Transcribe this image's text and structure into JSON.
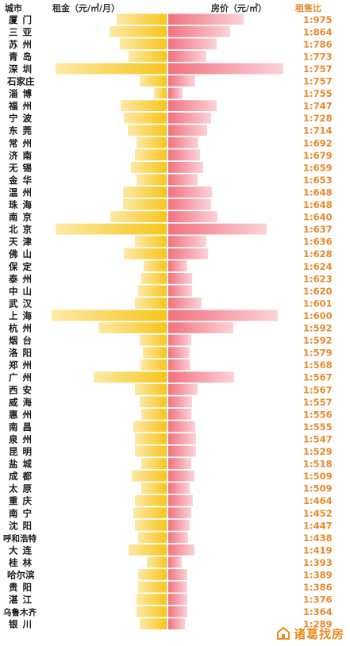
{
  "headers": {
    "city": "城市",
    "rent": "租金（元/㎡/月）",
    "price": "房价（元/㎡）",
    "ratio": "租售比"
  },
  "watermark": "诸葛找房",
  "colors": {
    "rent_dark": "#f7c51a",
    "rent_light": "#fde9a6",
    "price_dark": "#f2707e",
    "price_light": "#fbd3d8",
    "ratio_text": "#e8892b",
    "city_text": "#1a1a1a"
  },
  "chart_data": {
    "type": "bar",
    "categories": [
      "厦门",
      "三亚",
      "苏州",
      "青岛",
      "深圳",
      "石家庄",
      "淄博",
      "福州",
      "宁波",
      "东莞",
      "常州",
      "济南",
      "无锡",
      "金华",
      "温州",
      "珠海",
      "南京",
      "北京",
      "天津",
      "佛山",
      "保定",
      "泰州",
      "中山",
      "武汉",
      "上海",
      "杭州",
      "烟台",
      "洛阳",
      "郑州",
      "广州",
      "西安",
      "威海",
      "惠州",
      "南昌",
      "泉州",
      "昆明",
      "盐城",
      "成都",
      "太原",
      "重庆",
      "南宁",
      "沈阳",
      "呼和浩特",
      "大连",
      "桂林",
      "哈尔滨",
      "贵阳",
      "湛江",
      "乌鲁木齐",
      "银川"
    ],
    "series": [
      {
        "name": "租金（元/㎡/月）",
        "values": [
          63,
          72,
          59,
          48,
          140,
          34,
          16,
          58,
          54,
          49,
          38,
          40,
          45,
          38,
          55,
          55,
          71,
          140,
          40,
          54,
          29,
          32,
          36,
          40,
          145,
          86,
          34,
          30,
          33,
          92,
          40,
          34,
          32,
          42,
          40,
          40,
          32,
          44,
          32,
          40,
          42,
          40,
          36,
          48,
          25,
          36,
          36,
          38,
          38,
          34
        ]
      },
      {
        "name": "房价（元/㎡）",
        "values": [
          95,
          78,
          61,
          48,
          145,
          34,
          18,
          61,
          54,
          49,
          38,
          40,
          44,
          37,
          55,
          54,
          62,
          124,
          48,
          50,
          24,
          30,
          30,
          42,
          138,
          82,
          29,
          27,
          28,
          83,
          37,
          30,
          29,
          34,
          35,
          35,
          29,
          33,
          27,
          31,
          29,
          27,
          25,
          33,
          17,
          24,
          24,
          24,
          24,
          21
        ]
      },
      {
        "name": "租售比",
        "values": [
          "1:975",
          "1:864",
          "1:786",
          "1:773",
          "1:757",
          "1:757",
          "1:755",
          "1:747",
          "1:728",
          "1:714",
          "1:692",
          "1:679",
          "1:659",
          "1:653",
          "1:648",
          "1:648",
          "1:640",
          "1:637",
          "1:636",
          "1:628",
          "1:624",
          "1:623",
          "1:620",
          "1:601",
          "1:600",
          "1:592",
          "1:592",
          "1:579",
          "1:568",
          "1:567",
          "1:567",
          "1:557",
          "1:556",
          "1:555",
          "1:547",
          "1:529",
          "1:518",
          "1:509",
          "1:509",
          "1:464",
          "1:452",
          "1:447",
          "1:438",
          "1:419",
          "1:393",
          "1:389",
          "1:386",
          "1:376",
          "1:364",
          "1:289"
        ]
      }
    ]
  }
}
